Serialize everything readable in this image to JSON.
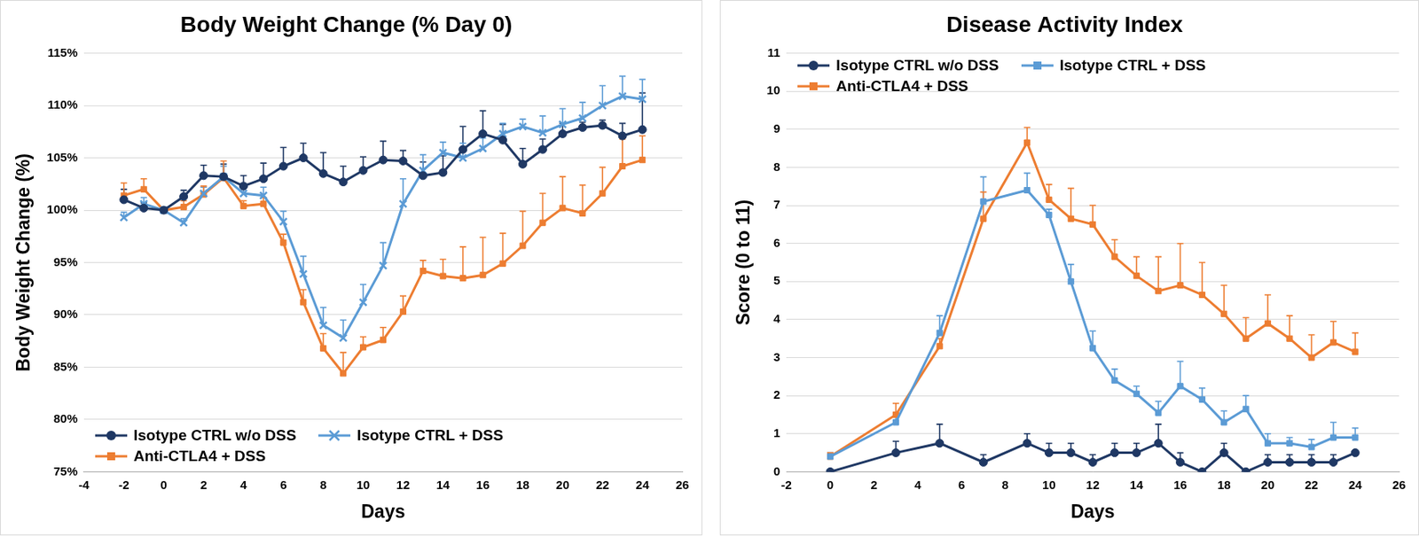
{
  "chart_data": [
    {
      "type": "line",
      "title": "Body Weight Change (% Day 0)",
      "x_label": "Days",
      "y_label": "Body Weight Change (%)",
      "xlim": [
        -4,
        26
      ],
      "xticks": [
        -4,
        -2,
        0,
        2,
        4,
        6,
        8,
        10,
        12,
        14,
        16,
        18,
        20,
        22,
        24,
        26
      ],
      "ylim": [
        75,
        115
      ],
      "yticks": [
        {
          "value": 75,
          "label": "75%"
        },
        {
          "value": 80,
          "label": "80%"
        },
        {
          "value": 85,
          "label": "85%"
        },
        {
          "value": 90,
          "label": "90%"
        },
        {
          "value": 95,
          "label": "95%"
        },
        {
          "value": 100,
          "label": "100%"
        },
        {
          "value": 105,
          "label": "105%"
        },
        {
          "value": 110,
          "label": "110%"
        },
        {
          "value": 115,
          "label": "115%"
        }
      ],
      "grid": "y",
      "legend": "lower left",
      "x": [
        -2,
        -1,
        0,
        1,
        2,
        3,
        4,
        5,
        6,
        7,
        8,
        9,
        10,
        11,
        12,
        13,
        14,
        15,
        16,
        17,
        18,
        19,
        20,
        21,
        22,
        23,
        24
      ],
      "series": [
        {
          "name": "Isotype CTRL w/o DSS",
          "color": "#1f3864",
          "marker": "circle",
          "values": [
            101,
            100.2,
            100,
            101.3,
            103.3,
            103.2,
            102.3,
            103,
            104.2,
            105,
            103.5,
            102.7,
            103.8,
            104.8,
            104.7,
            103.3,
            103.6,
            105.8,
            107.3,
            106.7,
            104.4,
            105.8,
            107.3,
            107.9,
            108.1,
            107.1,
            107.7
          ],
          "errors": [
            1.0,
            0.5,
            0,
            0.6,
            1.0,
            1.2,
            1.0,
            1.5,
            1.8,
            1.4,
            2.0,
            1.5,
            1.3,
            1.8,
            1.0,
            1.3,
            1.6,
            2.2,
            2.2,
            1.5,
            1.5,
            1.0,
            1.0,
            0.5,
            0.5,
            1.2,
            3.5
          ]
        },
        {
          "name": "Isotype CTRL + DSS",
          "color": "#5b9bd5",
          "marker": "cross",
          "values": [
            99.3,
            100.6,
            100,
            98.8,
            101.6,
            103.2,
            101.6,
            101.4,
            98.9,
            93.9,
            89,
            87.8,
            91.2,
            94.7,
            100.6,
            103.8,
            105.5,
            105,
            105.9,
            107.3,
            108,
            107.4,
            108.2,
            108.8,
            110,
            110.9,
            110.6
          ],
          "errors": [
            0.5,
            0.6,
            0,
            0.4,
            0.6,
            1.0,
            0.6,
            0.8,
            1.0,
            1.7,
            1.7,
            1.7,
            1.7,
            2.2,
            2.4,
            1.5,
            1.0,
            1.4,
            1.0,
            1.0,
            0.7,
            1.6,
            1.5,
            1.5,
            1.9,
            1.9,
            1.9
          ]
        },
        {
          "name": "Anti-CTLA4 + DSS",
          "color": "#ed7d31",
          "marker": "square",
          "values": [
            101.4,
            102,
            100,
            100.3,
            101.5,
            103.1,
            100.4,
            100.6,
            96.9,
            91.2,
            86.8,
            84.4,
            86.9,
            87.6,
            90.3,
            94.2,
            93.7,
            93.5,
            93.8,
            94.9,
            96.6,
            98.8,
            100.2,
            99.7,
            101.6,
            104.2,
            104.8
          ],
          "errors": [
            1.2,
            1.0,
            0,
            0.6,
            0.8,
            1.6,
            0.5,
            0.6,
            0.8,
            1.2,
            1.4,
            2.0,
            1.0,
            1.2,
            1.5,
            1.0,
            1.6,
            3.0,
            3.6,
            2.9,
            3.3,
            2.8,
            3.0,
            2.7,
            2.5,
            2.6,
            2.3
          ]
        }
      ]
    },
    {
      "type": "line",
      "title": "Disease Activity Index",
      "x_label": "Days",
      "y_label": "Score (0 to 11)",
      "xlim": [
        -2,
        26
      ],
      "xticks": [
        -2,
        0,
        2,
        4,
        6,
        8,
        10,
        12,
        14,
        16,
        18,
        20,
        22,
        24,
        26
      ],
      "ylim": [
        0,
        11
      ],
      "yticks": [
        0,
        1,
        2,
        3,
        4,
        5,
        6,
        7,
        8,
        9,
        10,
        11
      ],
      "grid": "y",
      "legend": "upper left",
      "x": [
        0,
        3,
        5,
        7,
        9,
        10,
        11,
        12,
        13,
        14,
        15,
        16,
        17,
        18,
        19,
        20,
        21,
        22,
        23,
        24
      ],
      "series": [
        {
          "name": "Isotype CTRL w/o DSS",
          "color": "#1f3864",
          "marker": "circle",
          "values": [
            0,
            0.5,
            0.75,
            0.25,
            0.75,
            0.5,
            0.5,
            0.25,
            0.5,
            0.5,
            0.75,
            0.25,
            0,
            0.5,
            0,
            0.25,
            0.25,
            0.25,
            0.25,
            0.5
          ],
          "errors": [
            0,
            0.3,
            0.5,
            0.2,
            0.25,
            0.25,
            0.25,
            0.2,
            0.25,
            0.25,
            0.5,
            0.25,
            0,
            0.25,
            0,
            0.2,
            0.2,
            0.2,
            0.2,
            0
          ]
        },
        {
          "name": "Isotype CTRL + DSS",
          "color": "#5b9bd5",
          "marker": "square",
          "values": [
            0.4,
            1.3,
            3.65,
            7.1,
            7.4,
            6.75,
            5.0,
            3.25,
            2.4,
            2.05,
            1.55,
            2.25,
            1.9,
            1.3,
            1.65,
            0.75,
            0.75,
            0.65,
            0.9,
            0.9
          ],
          "errors": [
            0.1,
            0.2,
            0.45,
            0.65,
            0.45,
            0.15,
            0.45,
            0.45,
            0.3,
            0.2,
            0.3,
            0.65,
            0.3,
            0.3,
            0.35,
            0.25,
            0.15,
            0.2,
            0.4,
            0.25
          ]
        },
        {
          "name": "Anti-CTLA4 + DSS",
          "color": "#ed7d31",
          "marker": "square",
          "values": [
            0.4,
            1.5,
            3.3,
            6.65,
            8.65,
            7.15,
            6.65,
            6.5,
            5.65,
            5.15,
            4.75,
            4.9,
            4.65,
            4.15,
            3.5,
            3.9,
            3.5,
            3.0,
            3.4,
            3.15
          ],
          "errors": [
            0.1,
            0.3,
            0.2,
            0.7,
            0.4,
            0.4,
            0.8,
            0.5,
            0.45,
            0.5,
            0.9,
            1.1,
            0.85,
            0.75,
            0.55,
            0.75,
            0.6,
            0.6,
            0.55,
            0.5
          ]
        }
      ]
    }
  ]
}
